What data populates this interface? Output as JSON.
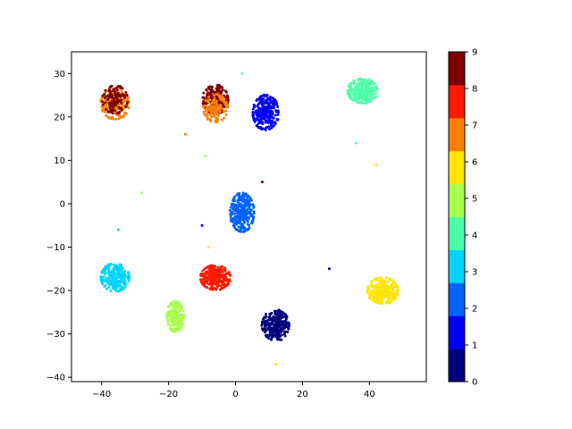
{
  "chart_data": {
    "type": "scatter",
    "title": "",
    "xlabel": "",
    "ylabel": "",
    "xlim": [
      -49,
      57
    ],
    "ylim": [
      -41,
      35
    ],
    "xticks": [
      -40,
      -20,
      0,
      20,
      40
    ],
    "yticks": [
      -40,
      -30,
      -20,
      -10,
      0,
      10,
      20,
      30
    ],
    "grid": false,
    "colorbar": {
      "label": "",
      "range": [
        0,
        9
      ],
      "ticks": [
        0,
        1,
        2,
        3,
        4,
        5,
        6,
        7,
        8,
        9
      ],
      "colormap": "jet (10 discrete levels)",
      "colors": [
        "#00007f",
        "#0000ff",
        "#0063ff",
        "#00d4ff",
        "#4effa9",
        "#a9ff4e",
        "#ffe500",
        "#ff7f00",
        "#ff1a00",
        "#7f0000"
      ]
    },
    "clusters": [
      {
        "label": 0,
        "center": [
          12,
          -28
        ],
        "spread": [
          4.0,
          3.5
        ],
        "count": 260
      },
      {
        "label": 1,
        "center": [
          9,
          21
        ],
        "spread": [
          3.8,
          4.0
        ],
        "count": 260
      },
      {
        "label": 2,
        "center": [
          2,
          -2
        ],
        "spread": [
          3.5,
          4.5
        ],
        "count": 260
      },
      {
        "label": 3,
        "center": [
          -36,
          -17
        ],
        "spread": [
          4.2,
          3.2
        ],
        "count": 260
      },
      {
        "label": 4,
        "center": [
          38,
          26
        ],
        "spread": [
          4.5,
          2.8
        ],
        "count": 260
      },
      {
        "label": 5,
        "center": [
          -18,
          -26
        ],
        "spread": [
          2.5,
          3.5
        ],
        "count": 200
      },
      {
        "label": 6,
        "center": [
          44,
          -20
        ],
        "spread": [
          4.5,
          3.0
        ],
        "count": 260
      },
      {
        "label": 7,
        "center": [
          -36,
          23
        ],
        "spread": [
          4.2,
          3.5
        ],
        "count": 180
      },
      {
        "label": 8,
        "center": [
          -6,
          -17
        ],
        "spread": [
          4.5,
          2.8
        ],
        "count": 260
      },
      {
        "label": 9,
        "center": [
          -6,
          24
        ],
        "spread": [
          3.8,
          3.3
        ],
        "count": 200
      },
      {
        "label": 7,
        "center": [
          -6,
          22
        ],
        "spread": [
          3.6,
          3.2
        ],
        "count": 120
      },
      {
        "label": 9,
        "center": [
          -36,
          24
        ],
        "spread": [
          3.8,
          3.2
        ],
        "count": 110
      }
    ],
    "outliers": [
      {
        "x": -28,
        "y": 2.5,
        "label": 5
      },
      {
        "x": 28,
        "y": -15,
        "label": 0
      },
      {
        "x": 42,
        "y": 9,
        "label": 6
      },
      {
        "x": 36,
        "y": 14,
        "label": 4
      },
      {
        "x": -15,
        "y": 16,
        "label": 7
      },
      {
        "x": -9,
        "y": 11,
        "label": 5
      },
      {
        "x": -10,
        "y": -5,
        "label": 1
      },
      {
        "x": 8,
        "y": 5,
        "label": 9
      },
      {
        "x": 12,
        "y": -37,
        "label": 6
      },
      {
        "x": -35,
        "y": -6,
        "label": 3
      },
      {
        "x": 2,
        "y": 30,
        "label": 4
      },
      {
        "x": -8,
        "y": -10,
        "label": 6
      }
    ]
  }
}
